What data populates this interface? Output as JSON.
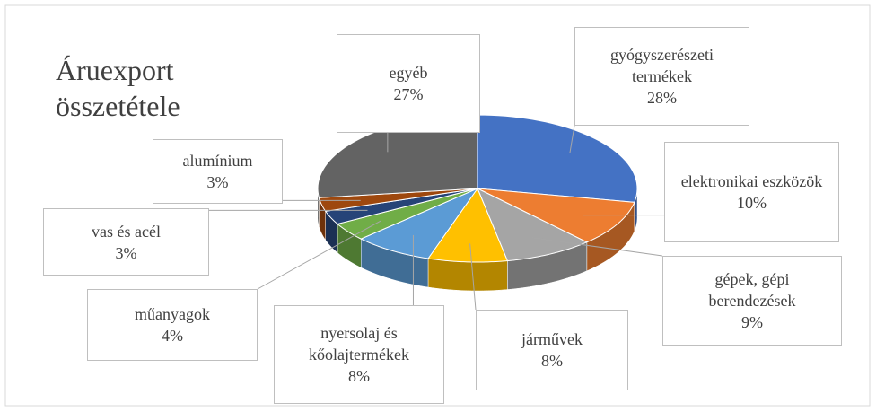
{
  "chart_data": {
    "type": "pie3d",
    "title": "Áruexport összetétele",
    "categories": [
      "gyógyszerészeti termékek",
      "elektronikai eszközök",
      "gépek, gépi berendezések",
      "járművek",
      "nyersolaj és kőolajtermékek",
      "műanyagok",
      "vas és acél",
      "alumínium",
      "egyéb"
    ],
    "values": [
      28,
      10,
      9,
      8,
      8,
      4,
      3,
      3,
      27
    ],
    "value_labels": [
      "28%",
      "10%",
      "9%",
      "8%",
      "8%",
      "4%",
      "3%",
      "3%",
      "27%"
    ],
    "colors": [
      "#4472c4",
      "#ed7d31",
      "#a5a5a5",
      "#ffc000",
      "#5b9bd5",
      "#70ad47",
      "#264478",
      "#9e480e",
      "#636363"
    ]
  }
}
